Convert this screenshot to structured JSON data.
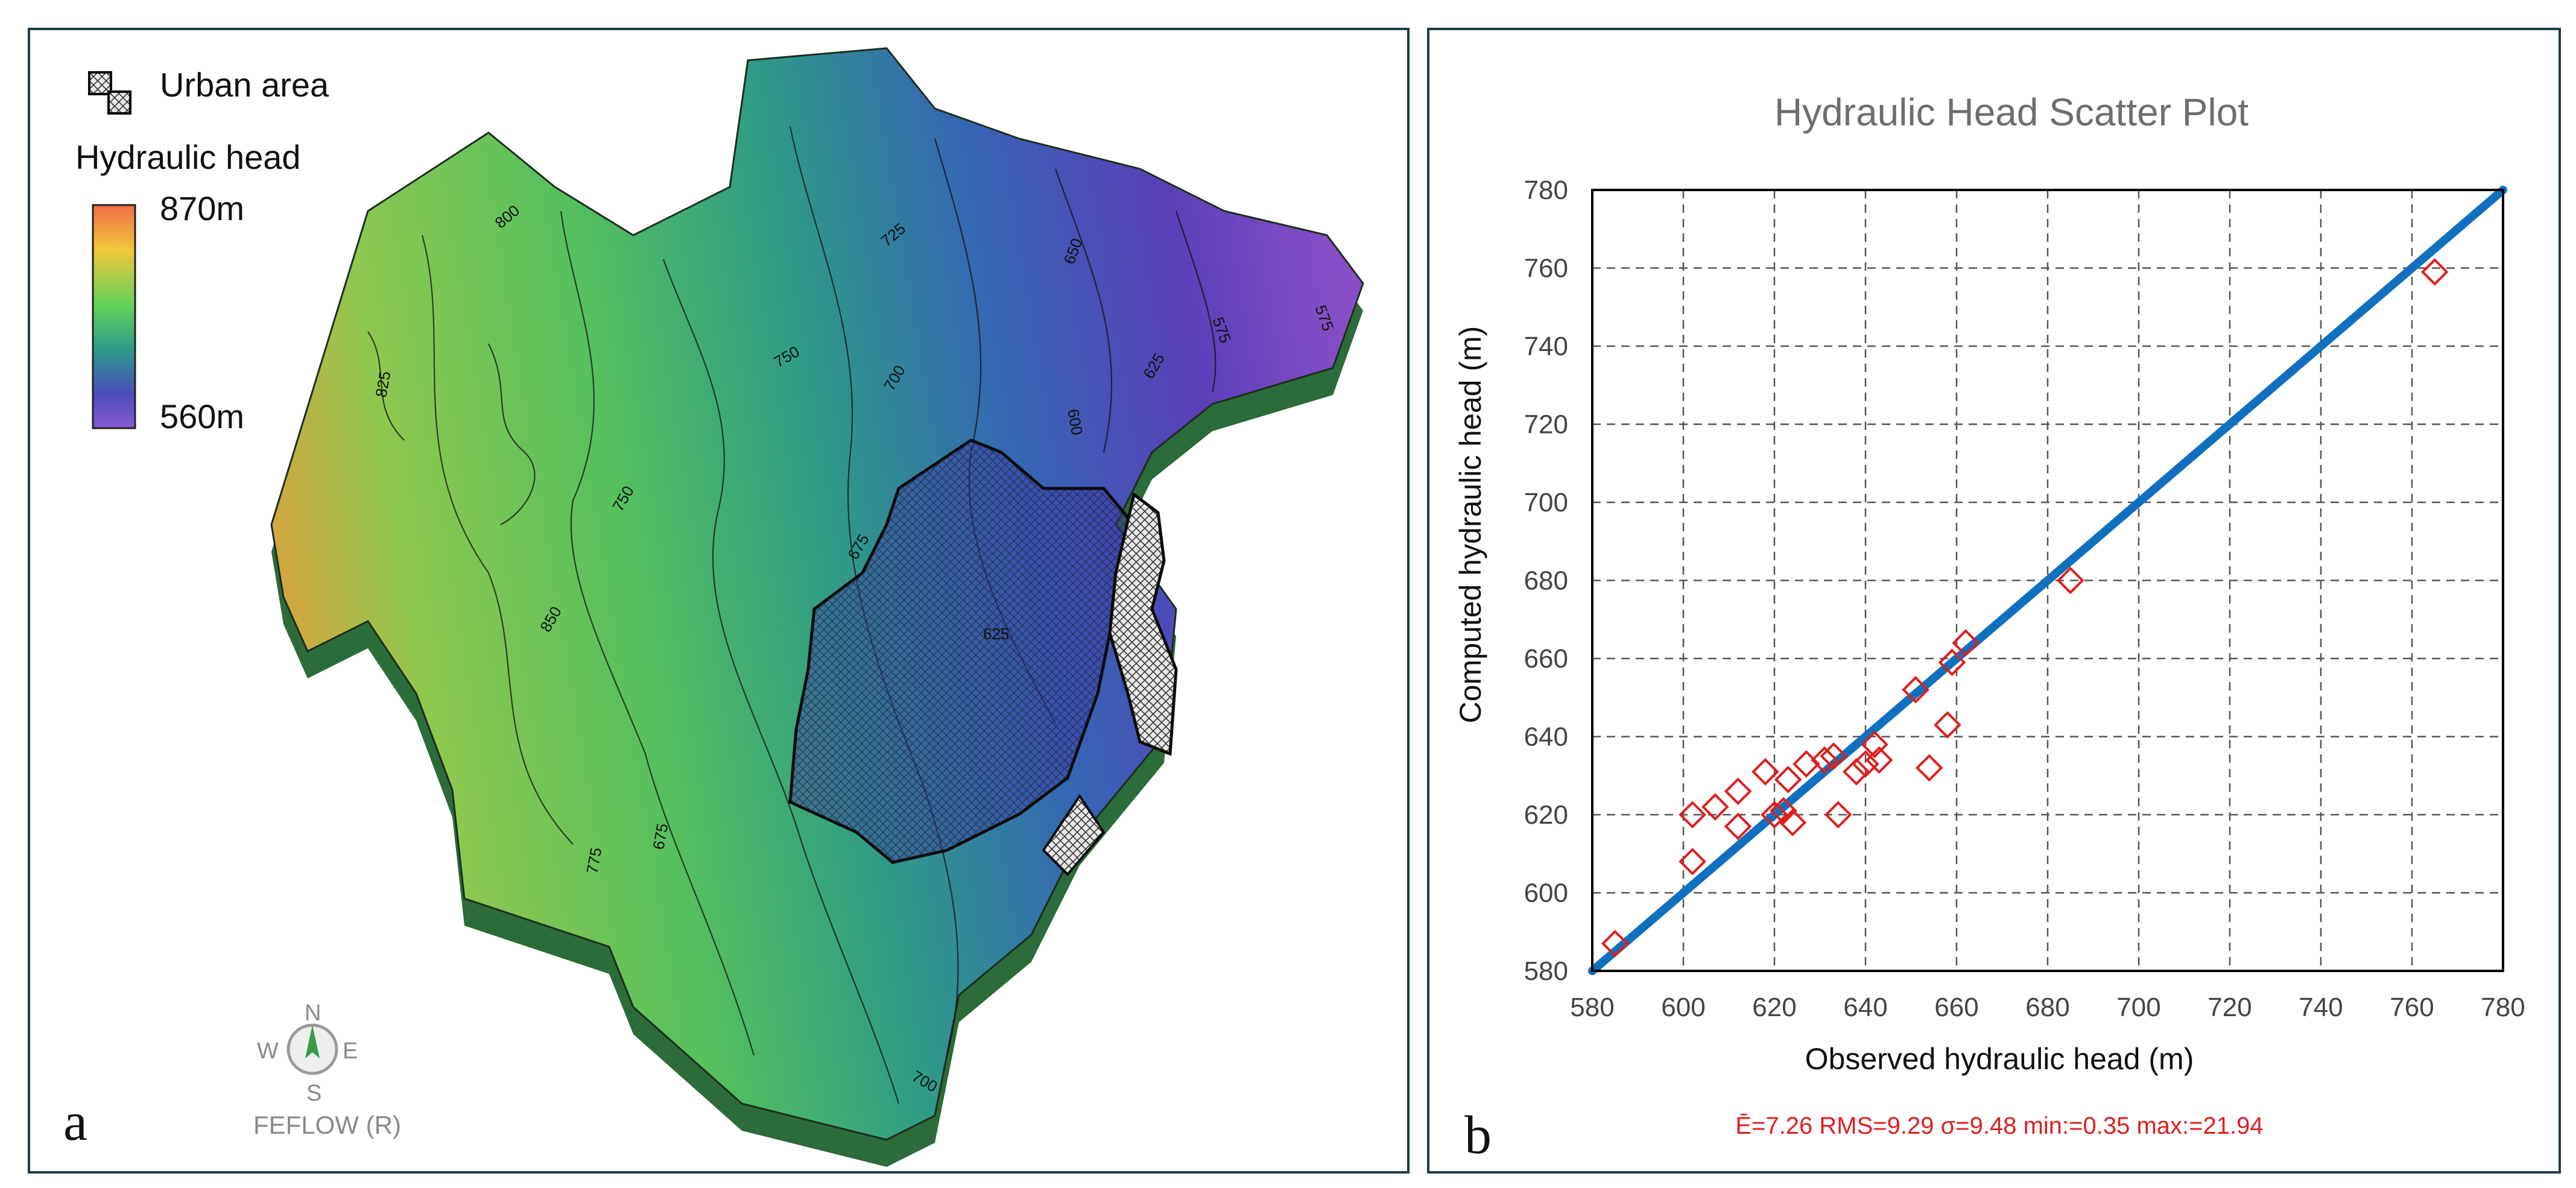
{
  "panel_a": {
    "letter": "a",
    "legend": {
      "urban_label": "Urban area",
      "head_title": "Hydraulic head",
      "max_label": "870m",
      "min_label": "560m",
      "gradient_colors": [
        "#f06c48",
        "#f2c63a",
        "#62d35a",
        "#2d9a8a",
        "#4a4bbd",
        "#8a5bd0"
      ]
    },
    "contour_labels": [
      "800",
      "825",
      "750",
      "725",
      "700",
      "650",
      "600",
      "575",
      "575",
      "625",
      "625",
      "675",
      "675",
      "700",
      "775",
      "750",
      "850"
    ],
    "compass": {
      "n": "N",
      "s": "S",
      "e": "E",
      "w": "W",
      "credit": "FEFLOW (R)"
    }
  },
  "panel_b": {
    "letter": "b",
    "stats": "Ē=7.26   RMS=9.29   σ=9.48   min:=0.35   max:=21.94",
    "colors": {
      "marker": "#e01e1e",
      "line": "#1070c0",
      "grid": "#555555",
      "title": "#6e6e6e",
      "stats": "#e01e1e"
    }
  },
  "chart_data": {
    "type": "scatter",
    "title": "Hydraulic Head Scatter Plot",
    "xlabel": "Observed hydraulic head (m)",
    "ylabel": "Computed hydraulic head (m)",
    "xlim": [
      580,
      780
    ],
    "ylim": [
      580,
      780
    ],
    "xticks": [
      580,
      600,
      620,
      640,
      660,
      680,
      700,
      720,
      740,
      760,
      780
    ],
    "yticks": [
      580,
      600,
      620,
      640,
      660,
      680,
      700,
      720,
      740,
      760,
      780
    ],
    "grid": true,
    "reference_line": {
      "x": [
        580,
        780
      ],
      "y": [
        580,
        780
      ]
    },
    "points": [
      {
        "x": 585,
        "y": 587
      },
      {
        "x": 602,
        "y": 620
      },
      {
        "x": 602,
        "y": 608
      },
      {
        "x": 607,
        "y": 622
      },
      {
        "x": 612,
        "y": 626
      },
      {
        "x": 612,
        "y": 617
      },
      {
        "x": 618,
        "y": 631
      },
      {
        "x": 620,
        "y": 620
      },
      {
        "x": 622,
        "y": 621
      },
      {
        "x": 623,
        "y": 629
      },
      {
        "x": 624,
        "y": 618
      },
      {
        "x": 627,
        "y": 633
      },
      {
        "x": 631,
        "y": 634
      },
      {
        "x": 633,
        "y": 635
      },
      {
        "x": 634,
        "y": 620
      },
      {
        "x": 638,
        "y": 631
      },
      {
        "x": 640,
        "y": 633
      },
      {
        "x": 642,
        "y": 638
      },
      {
        "x": 643,
        "y": 634
      },
      {
        "x": 651,
        "y": 652
      },
      {
        "x": 654,
        "y": 632
      },
      {
        "x": 658,
        "y": 643
      },
      {
        "x": 659,
        "y": 659
      },
      {
        "x": 662,
        "y": 664
      },
      {
        "x": 685,
        "y": 680
      },
      {
        "x": 765,
        "y": 759
      }
    ]
  }
}
